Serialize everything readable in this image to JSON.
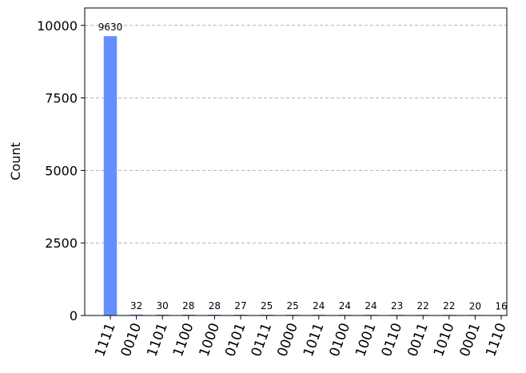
{
  "chart_data": {
    "type": "bar",
    "categories": [
      "1111",
      "0010",
      "1101",
      "1100",
      "1000",
      "0101",
      "0111",
      "0000",
      "1011",
      "0100",
      "1001",
      "0110",
      "0011",
      "1010",
      "0001",
      "1110"
    ],
    "values": [
      9630,
      32,
      30,
      28,
      28,
      27,
      25,
      25,
      24,
      24,
      24,
      23,
      22,
      22,
      20,
      16
    ],
    "value_labels": [
      "9630",
      "32",
      "30",
      "28",
      "28",
      "27",
      "25",
      "25",
      "24",
      "24",
      "24",
      "23",
      "22",
      "22",
      "20",
      "16"
    ],
    "ylabel": "Count",
    "ylim": [
      0,
      10600
    ],
    "yticks": [
      0,
      2500,
      5000,
      7500,
      10000
    ],
    "ytick_labels": [
      "0",
      "2500",
      "5000",
      "7500",
      "10000"
    ],
    "grid": "y-dashed",
    "bar_color": "#648fff",
    "x_tick_rotation": -70
  }
}
